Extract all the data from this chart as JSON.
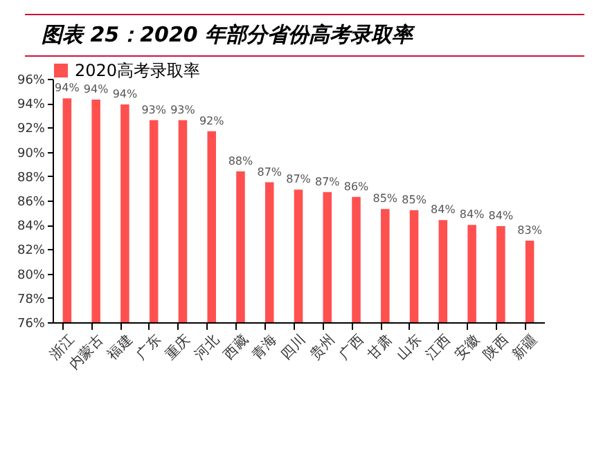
{
  "chart_data": {
    "type": "bar",
    "title": "图表 25：2020 年部分省份高考录取率",
    "categories": [
      "浙江",
      "内蒙古",
      "福建",
      "广东",
      "重庆",
      "河北",
      "西藏",
      "青海",
      "四川",
      "贵州",
      "广西",
      "甘肃",
      "山东",
      "江西",
      "安徽",
      "陕西",
      "新疆"
    ],
    "series": [
      {
        "name": "2020高考录取率",
        "color": "#ff5050",
        "values": [
          94.4,
          94.3,
          93.9,
          92.6,
          92.6,
          91.7,
          88.4,
          87.5,
          86.9,
          86.7,
          86.3,
          85.3,
          85.2,
          84.4,
          84.0,
          83.9,
          82.7
        ],
        "value_labels": [
          "94%",
          "94%",
          "94%",
          "93%",
          "93%",
          "92%",
          "88%",
          "87%",
          "87%",
          "87%",
          "86%",
          "85%",
          "85%",
          "84%",
          "84%",
          "84%",
          "83%"
        ]
      }
    ],
    "ylim": [
      76,
      96
    ],
    "yticks": [
      {
        "value": 76,
        "label": "76%"
      },
      {
        "value": 78,
        "label": "78%"
      },
      {
        "value": 80,
        "label": "80%"
      },
      {
        "value": 82,
        "label": "82%"
      },
      {
        "value": 84,
        "label": "84%"
      },
      {
        "value": 86,
        "label": "86%"
      },
      {
        "value": 88,
        "label": "88%"
      },
      {
        "value": 90,
        "label": "90%"
      },
      {
        "value": 92,
        "label": "92%"
      },
      {
        "value": 94,
        "label": "94%"
      },
      {
        "value": 96,
        "label": "96%"
      }
    ],
    "grid": false,
    "legend": "top"
  }
}
